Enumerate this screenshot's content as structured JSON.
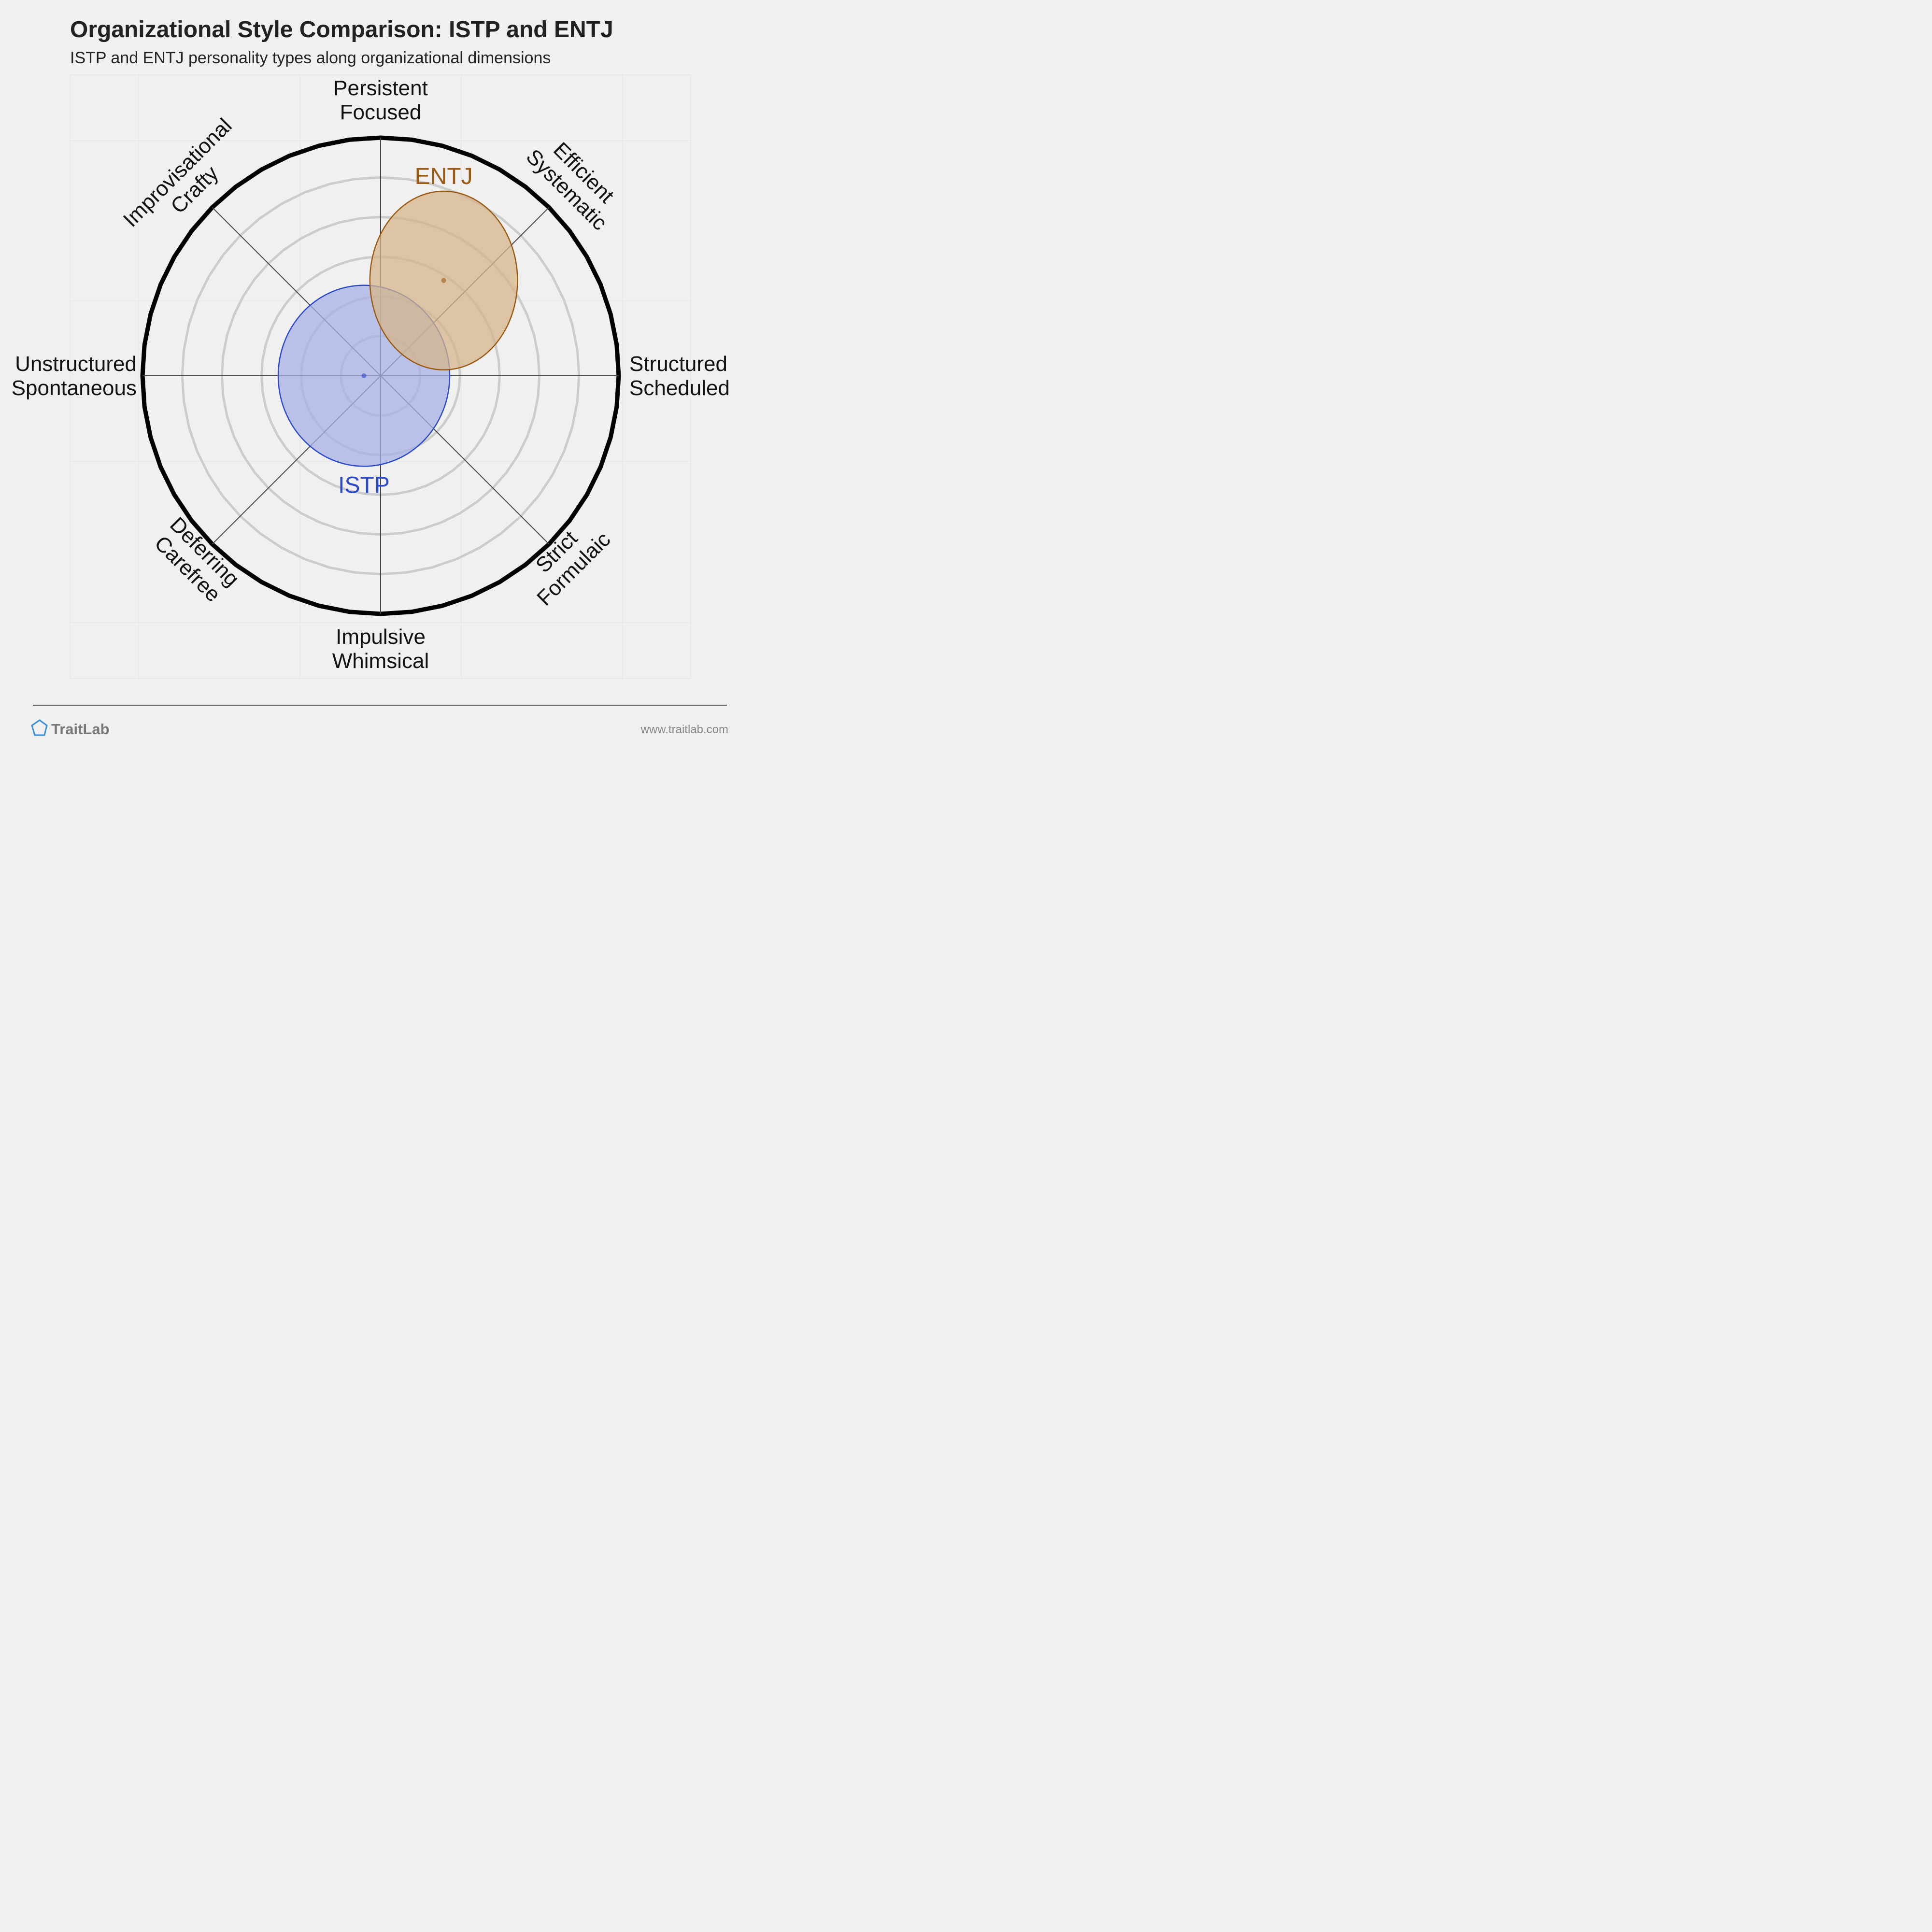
{
  "chart_data": {
    "type": "scatter",
    "variant": "polar-ellipse-comparison",
    "title": "Organizational Style Comparison: ISTP and ENTJ",
    "subtitle": "ISTP and ENTJ personality types along organizational dimensions",
    "axes": [
      {
        "label_lines": [
          "Persistent",
          "Focused"
        ]
      },
      {
        "label_lines": [
          "Efficient",
          "Systematic"
        ]
      },
      {
        "label_lines": [
          "Structured",
          "Scheduled"
        ]
      },
      {
        "label_lines": [
          "Strict",
          "Formulaic"
        ]
      },
      {
        "label_lines": [
          "Impulsive",
          "Whimsical"
        ]
      },
      {
        "label_lines": [
          "Deferring",
          "Carefree"
        ]
      },
      {
        "label_lines": [
          "Unstructured",
          "Spontaneous"
        ]
      },
      {
        "label_lines": [
          "Improvisational",
          "Crafty"
        ]
      }
    ],
    "x_axis": "Unstructured ↔ Structured",
    "y_axis": "Impulsive ↔ Persistent",
    "range": [
      -1,
      1
    ],
    "ring_count": 6,
    "grid": true,
    "series": [
      {
        "name": "ISTP",
        "center": [
          -0.07,
          0.0
        ],
        "spread": [
          0.36,
          0.38
        ],
        "color": "#2b4acb",
        "fill": "#a8b2e6"
      },
      {
        "name": "ENTJ",
        "center": [
          0.265,
          0.4
        ],
        "spread": [
          0.31,
          0.375
        ],
        "color": "#9a5a12",
        "fill": "#d4b48a"
      }
    ]
  },
  "footer": {
    "brand": "TraitLab",
    "url": "www.traitlab.com"
  },
  "colors": {
    "background": "#f0f0f0",
    "outer_ring": "#000000",
    "grid_ring": "#cccccc",
    "axis_line": "#444444",
    "logo": "#3a8fd8"
  }
}
